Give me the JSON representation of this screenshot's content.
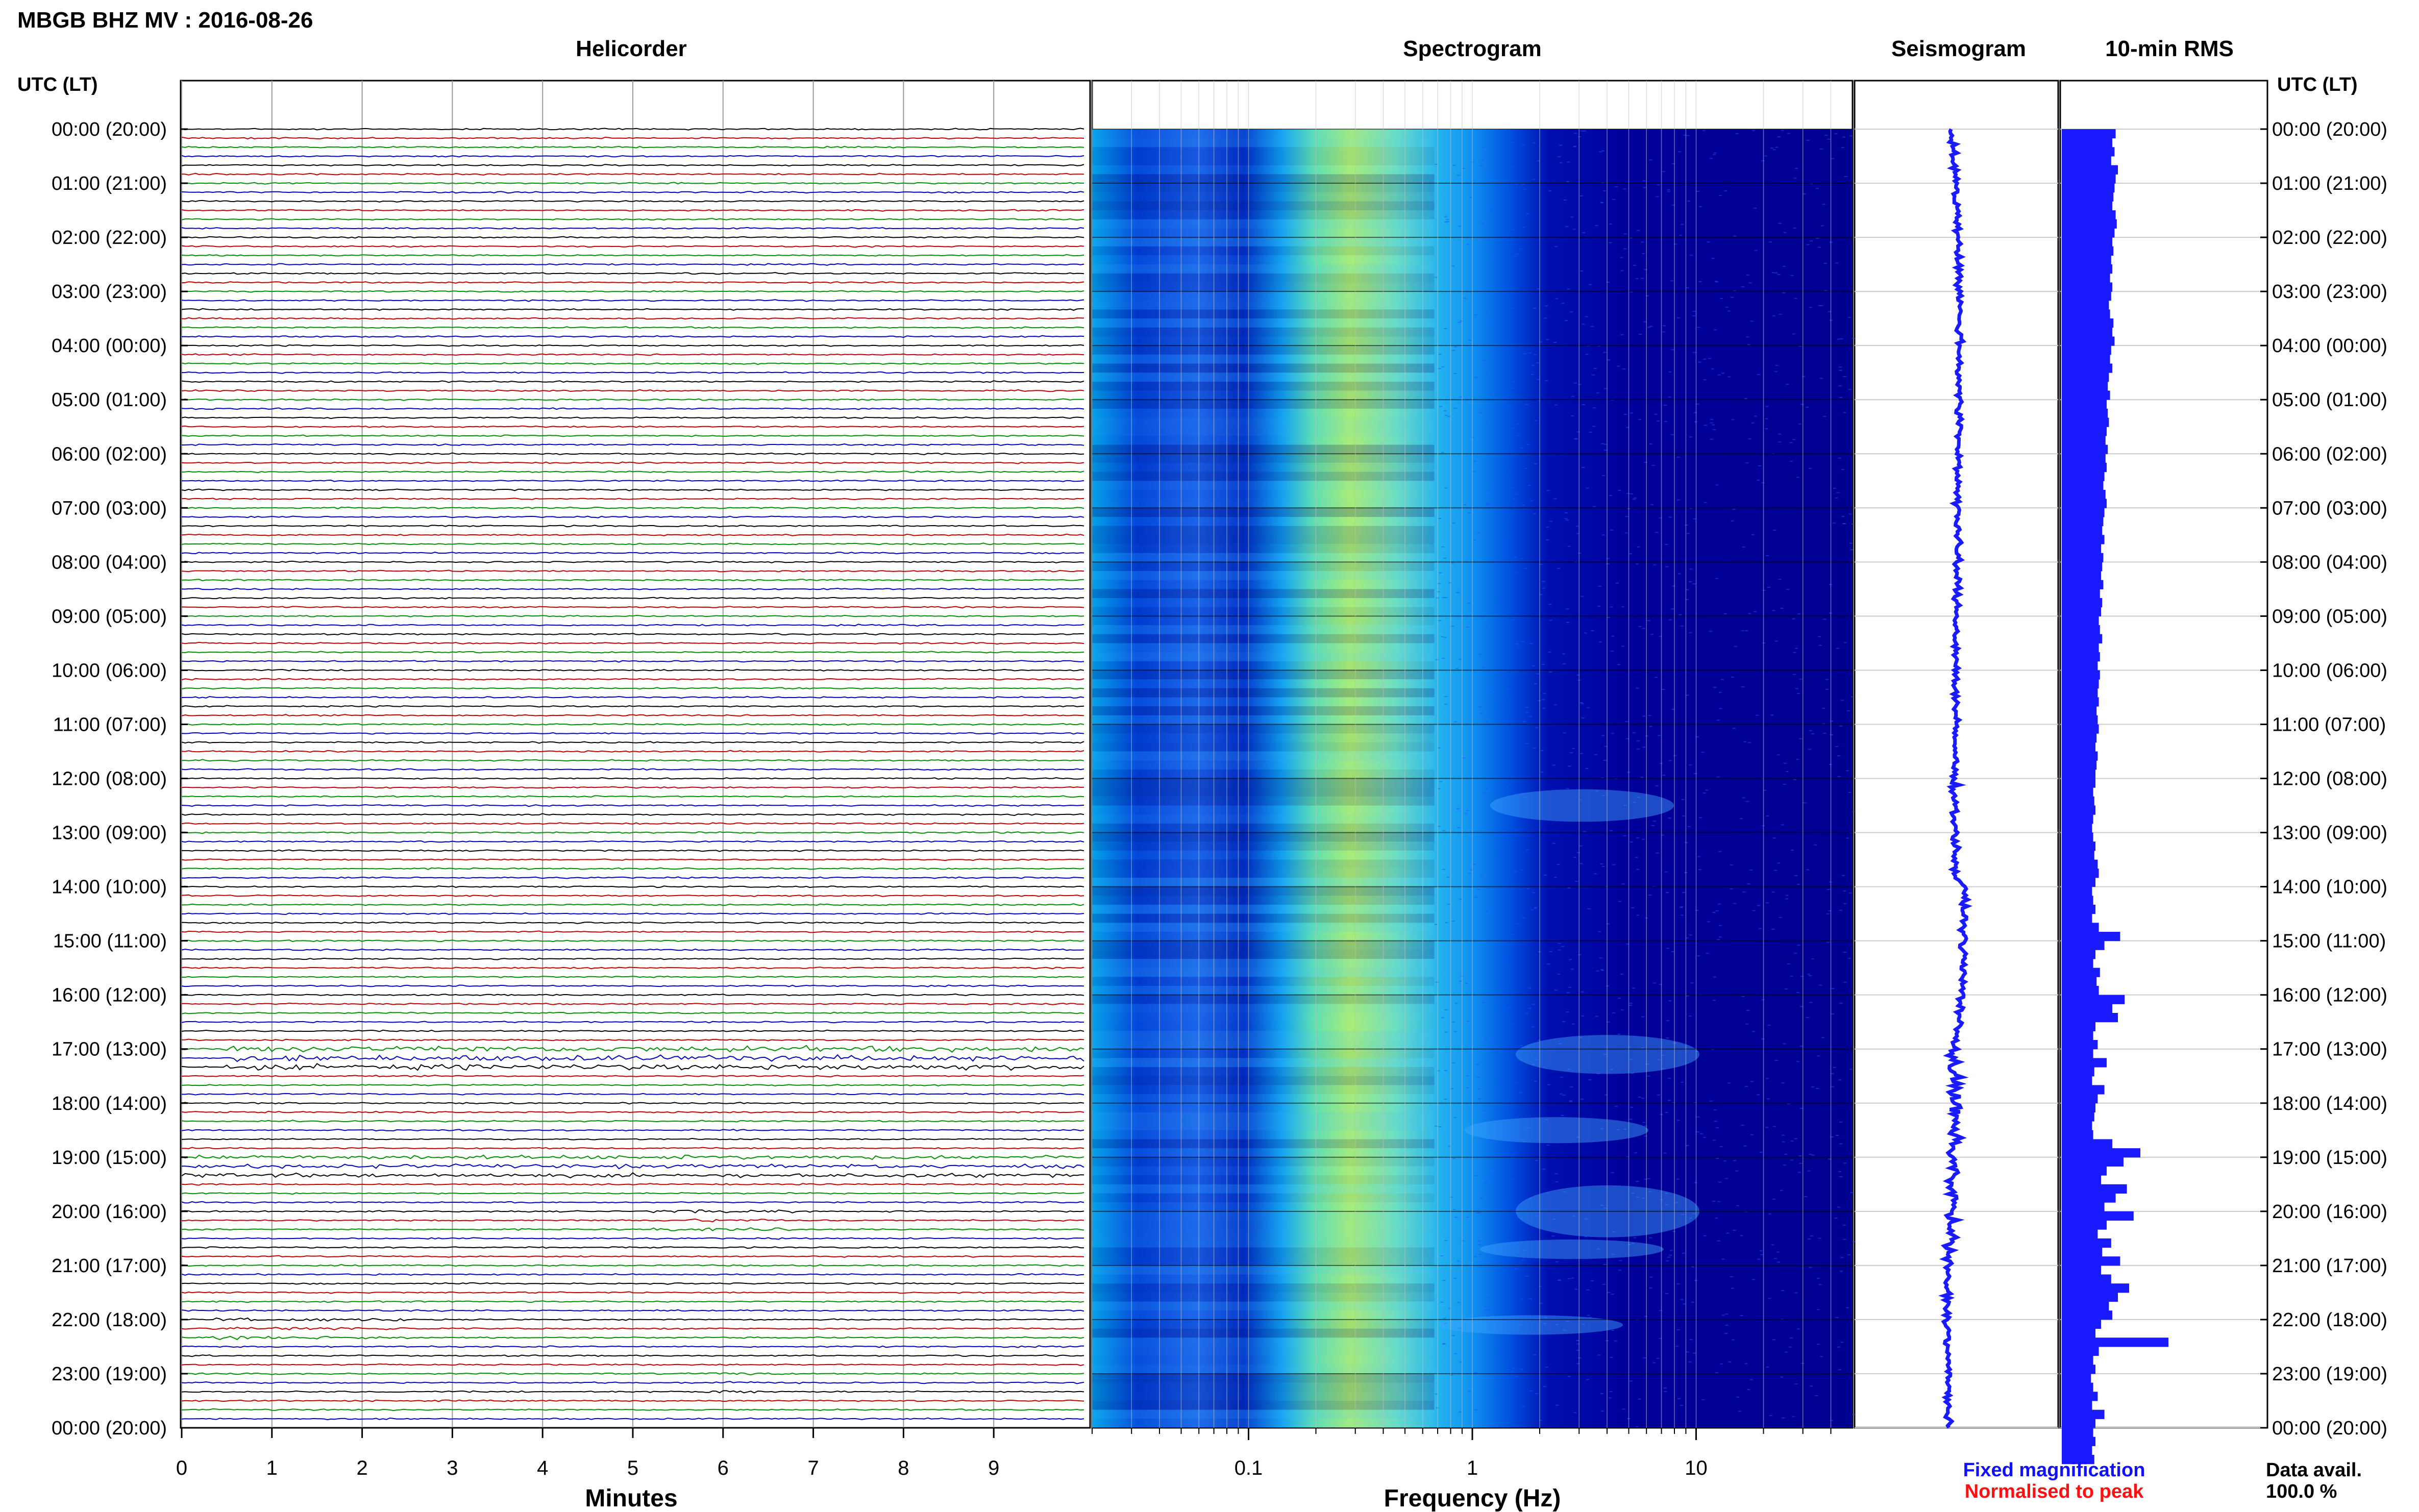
{
  "title": "MBGB BHZ MV : 2016-08-26",
  "panels": {
    "helicorder": "Helicorder",
    "spectrogram": "Spectrogram",
    "seismogram": "Seismogram",
    "rms": "10-min RMS"
  },
  "left_axis_header": "UTC (LT)",
  "right_axis_header": "UTC (LT)",
  "time_labels": [
    "00:00 (20:00)",
    "01:00 (21:00)",
    "02:00 (22:00)",
    "03:00 (23:00)",
    "04:00 (00:00)",
    "05:00 (01:00)",
    "06:00 (02:00)",
    "07:00 (03:00)",
    "08:00 (04:00)",
    "09:00 (05:00)",
    "10:00 (06:00)",
    "11:00 (07:00)",
    "12:00 (08:00)",
    "13:00 (09:00)",
    "14:00 (10:00)",
    "15:00 (11:00)",
    "16:00 (12:00)",
    "17:00 (13:00)",
    "18:00 (14:00)",
    "19:00 (15:00)",
    "20:00 (16:00)",
    "21:00 (17:00)",
    "22:00 (18:00)",
    "23:00 (19:00)",
    "00:00 (20:00)"
  ],
  "legend": {
    "fixed": "Fixed magnification",
    "normalised": "Normalised to peak",
    "fixed_color": "#1010ff",
    "normalised_color": "#ff1010"
  },
  "data_avail": {
    "label": "Data avail.",
    "value": "100.0 %"
  },
  "colors": {
    "trace_cycle": [
      "#000000",
      "#c00000",
      "#009000",
      "#0000c0"
    ],
    "rms_bar": "#1a1aff",
    "seismogram": "#1a1aff",
    "spec_low": "#00008b",
    "spec_high": "#ffff40"
  },
  "chart_data": [
    {
      "type": "line",
      "panel": "helicorder",
      "xlabel": "Minutes",
      "x_ticks": [
        "0",
        "1",
        "2",
        "3",
        "4",
        "5",
        "6",
        "7",
        "8",
        "9"
      ],
      "xlim": [
        0,
        10
      ],
      "rows": 144,
      "minutes_per_row": 10,
      "trace_colors_cycle": [
        "black",
        "red",
        "green",
        "blue"
      ],
      "events": [
        {
          "hour": 17,
          "minute_start": 0.5,
          "minute_end": 10,
          "amplitude": "high"
        },
        {
          "hour": 19,
          "minute_start": 0,
          "minute_end": 10,
          "amplitude": "medium"
        },
        {
          "hour": 20,
          "minute_start": 5.2,
          "minute_end": 6.8,
          "amplitude": "low"
        },
        {
          "hour": 22,
          "minute_start": 0.3,
          "minute_end": 2.5,
          "amplitude": "low"
        },
        {
          "hour": 23,
          "minute_start": 5.8,
          "minute_end": 6.5,
          "amplitude": "low"
        }
      ]
    },
    {
      "type": "heatmap",
      "panel": "spectrogram",
      "xlabel": "Frequency (Hz)",
      "x_scale": "log",
      "xlim": [
        0.02,
        50
      ],
      "x_ticks": [
        "0.1",
        "1",
        "10"
      ],
      "y_range_hours": [
        0,
        24
      ],
      "peak_frequency_hz": 0.4
    },
    {
      "type": "line",
      "panel": "seismogram",
      "y_range_hours": [
        0,
        24
      ]
    },
    {
      "type": "bar",
      "panel": "rms",
      "orientation": "horizontal",
      "bin_minutes": 10,
      "values": [
        0.48,
        0.45,
        0.47,
        0.44,
        0.5,
        0.48,
        0.47,
        0.46,
        0.45,
        0.48,
        0.49,
        0.47,
        0.45,
        0.46,
        0.44,
        0.45,
        0.43,
        0.45,
        0.44,
        0.42,
        0.43,
        0.46,
        0.45,
        0.47,
        0.44,
        0.43,
        0.45,
        0.42,
        0.41,
        0.43,
        0.4,
        0.41,
        0.42,
        0.4,
        0.39,
        0.41,
        0.39,
        0.4,
        0.38,
        0.37,
        0.39,
        0.4,
        0.38,
        0.37,
        0.36,
        0.38,
        0.35,
        0.37,
        0.36,
        0.35,
        0.37,
        0.34,
        0.36,
        0.35,
        0.33,
        0.34,
        0.36,
        0.33,
        0.34,
        0.32,
        0.34,
        0.33,
        0.32,
        0.33,
        0.31,
        0.32,
        0.33,
        0.31,
        0.3,
        0.32,
        0.31,
        0.3,
        0.3,
        0.28,
        0.29,
        0.3,
        0.28,
        0.27,
        0.28,
        0.3,
        0.29,
        0.32,
        0.33,
        0.3,
        0.27,
        0.28,
        0.3,
        0.27,
        0.33,
        0.52,
        0.38,
        0.3,
        0.28,
        0.34,
        0.31,
        0.33,
        0.56,
        0.45,
        0.5,
        0.3,
        0.28,
        0.32,
        0.28,
        0.4,
        0.29,
        0.27,
        0.38,
        0.32,
        0.3,
        0.29,
        0.27,
        0.28,
        0.45,
        0.7,
        0.55,
        0.4,
        0.35,
        0.58,
        0.48,
        0.38,
        0.64,
        0.4,
        0.32,
        0.44,
        0.36,
        0.52,
        0.35,
        0.44,
        0.6,
        0.5,
        0.42,
        0.45,
        0.35,
        0.3,
        0.95,
        0.33,
        0.28,
        0.3,
        0.26,
        0.28,
        0.32,
        0.27,
        0.38,
        0.3,
        0.28,
        0.3,
        0.27,
        0.29
      ],
      "xlim": [
        0,
        1
      ]
    }
  ]
}
